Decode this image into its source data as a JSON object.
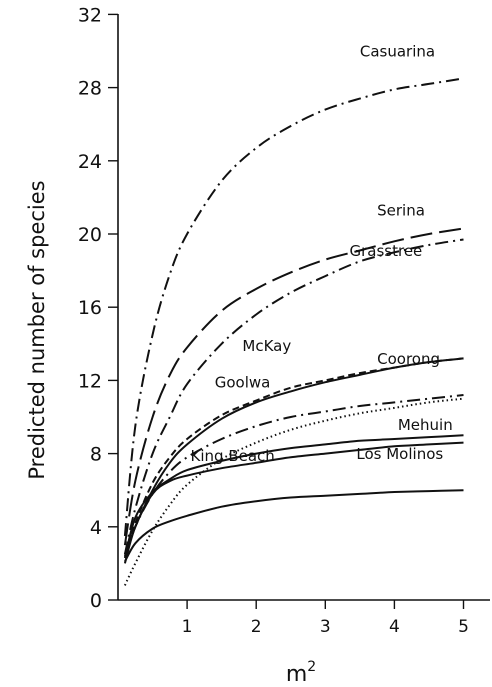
{
  "chart_data": {
    "type": "line",
    "title": "",
    "xlabel": "m",
    "xlabel_superscript": "2",
    "ylabel": "Predicted number of species",
    "xlim": [
      0,
      5.35
    ],
    "ylim": [
      0,
      32
    ],
    "xticks": [
      1,
      2,
      3,
      4,
      5
    ],
    "yticks": [
      0,
      4,
      8,
      12,
      16,
      20,
      24,
      28,
      32
    ],
    "grid": false,
    "legend": "none (curves labeled directly)",
    "series": [
      {
        "name": "Casuarina",
        "style": "dash-dot",
        "x": [
          0.1,
          0.25,
          0.5,
          0.75,
          1,
          1.5,
          2,
          2.5,
          3,
          3.5,
          4,
          4.5,
          5
        ],
        "y": [
          3.5,
          9.5,
          14.5,
          17.8,
          20.0,
          22.9,
          24.7,
          25.9,
          26.8,
          27.4,
          27.9,
          28.2,
          28.5
        ]
      },
      {
        "name": "Serina",
        "style": "long-dash",
        "x": [
          0.1,
          0.25,
          0.5,
          0.75,
          1,
          1.5,
          2,
          2.5,
          3,
          3.5,
          4,
          4.5,
          5
        ],
        "y": [
          3.0,
          6.5,
          10.0,
          12.3,
          13.8,
          15.8,
          17.0,
          17.9,
          18.6,
          19.1,
          19.6,
          20.0,
          20.3
        ]
      },
      {
        "name": "Grasstree",
        "style": "dash-dot",
        "x": [
          0.1,
          0.25,
          0.5,
          0.75,
          1,
          1.5,
          2,
          2.5,
          3,
          3.5,
          4,
          4.5,
          5
        ],
        "y": [
          2.5,
          5.0,
          8.0,
          10.0,
          11.8,
          14.0,
          15.6,
          16.8,
          17.7,
          18.5,
          19.0,
          19.4,
          19.7
        ]
      },
      {
        "name": "McKay",
        "style": "dashed",
        "x": [
          0.1,
          0.25,
          0.5,
          0.75,
          1,
          1.5,
          2,
          2.5,
          3,
          3.5,
          4,
          4.5,
          5
        ],
        "y": [
          2.5,
          4.2,
          6.4,
          7.8,
          8.8,
          10.1,
          10.9,
          11.6,
          12.0,
          12.4,
          12.7,
          13.0,
          13.2
        ]
      },
      {
        "name": "Coorong",
        "style": "solid",
        "x": [
          0.1,
          0.25,
          0.5,
          0.75,
          1,
          1.5,
          2,
          2.5,
          3,
          3.5,
          4,
          4.5,
          5
        ],
        "y": [
          2.4,
          4.0,
          6.0,
          7.5,
          8.5,
          9.9,
          10.8,
          11.4,
          11.9,
          12.3,
          12.7,
          13.0,
          13.2
        ]
      },
      {
        "name": "Goolwa",
        "style": "dash-dot",
        "x": [
          0.1,
          0.25,
          0.5,
          0.75,
          1,
          1.5,
          2,
          2.5,
          3,
          3.5,
          4,
          4.5,
          5
        ],
        "y": [
          2.3,
          4.0,
          5.8,
          7.0,
          7.8,
          8.8,
          9.5,
          10.0,
          10.3,
          10.6,
          10.8,
          11.0,
          11.2
        ]
      },
      {
        "name": "",
        "style": "dotted",
        "x": [
          0.1,
          0.25,
          0.5,
          0.75,
          1,
          1.5,
          2,
          2.5,
          3,
          3.5,
          4,
          4.5,
          5
        ],
        "y": [
          0.8,
          2.0,
          3.8,
          5.2,
          6.3,
          7.7,
          8.6,
          9.3,
          9.8,
          10.2,
          10.5,
          10.8,
          11.0
        ]
      },
      {
        "name": "Mehuin",
        "style": "solid",
        "x": [
          0.1,
          0.25,
          0.5,
          0.75,
          1,
          1.5,
          2,
          2.5,
          3,
          3.5,
          4,
          4.5,
          5
        ],
        "y": [
          2.3,
          4.5,
          5.9,
          6.6,
          7.1,
          7.6,
          8.0,
          8.3,
          8.5,
          8.7,
          8.8,
          8.9,
          9.0
        ]
      },
      {
        "name": "King Beach",
        "style": "solid",
        "x": [
          0.1,
          0.25,
          0.5,
          0.75,
          1,
          1.5,
          2,
          2.5,
          3,
          3.5,
          4,
          4.5,
          5
        ],
        "y": [
          2.0,
          4.0,
          5.8,
          6.5,
          6.8,
          7.2,
          7.5,
          7.8,
          8.0,
          8.2,
          8.4,
          8.5,
          8.6
        ]
      },
      {
        "name": "Los Molinos",
        "style": "solid",
        "x": [
          0.1,
          0.25,
          0.5,
          0.75,
          1,
          1.5,
          2,
          2.5,
          3,
          3.5,
          4,
          4.5,
          5
        ],
        "y": [
          2.1,
          3.1,
          3.9,
          4.3,
          4.6,
          5.1,
          5.4,
          5.6,
          5.7,
          5.8,
          5.9,
          5.95,
          6.0
        ]
      }
    ],
    "annotations": [
      {
        "text": "Casuarina",
        "x": 3.5,
        "y": 29.7
      },
      {
        "text": "Serina",
        "x": 3.75,
        "y": 21.0
      },
      {
        "text": "Grasstree",
        "x": 3.35,
        "y": 18.8
      },
      {
        "text": "McKay",
        "x": 1.8,
        "y": 13.6
      },
      {
        "text": "Coorong",
        "x": 3.75,
        "y": 12.9
      },
      {
        "text": "Goolwa",
        "x": 1.4,
        "y": 11.6
      },
      {
        "text": "Mehuin",
        "x": 4.05,
        "y": 9.3
      },
      {
        "text": "King Beach",
        "x": 1.05,
        "y": 7.6
      },
      {
        "text": "Los Molinos",
        "x": 3.45,
        "y": 7.7
      }
    ]
  }
}
